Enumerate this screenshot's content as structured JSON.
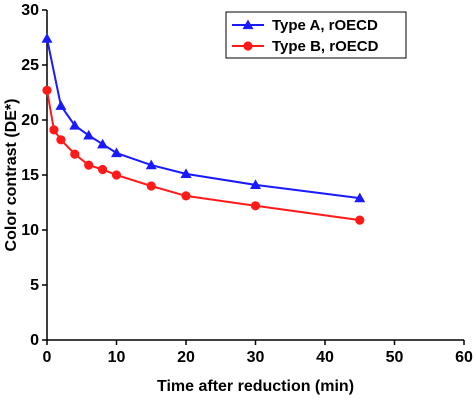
{
  "chart_data": {
    "type": "line",
    "title": "",
    "xlabel": "Time after reduction (min)",
    "ylabel": "Color contrast (DE*)",
    "xlim": [
      0,
      60
    ],
    "ylim": [
      0,
      30
    ],
    "xticks": [
      "0",
      "10",
      "20",
      "30",
      "40",
      "50",
      "60"
    ],
    "yticks": [
      "0",
      "5",
      "10",
      "15",
      "20",
      "25",
      "30"
    ],
    "grid": false,
    "legend_position": "top-right",
    "series": [
      {
        "name": "Type A, rOECD",
        "color": "#1a1aff",
        "marker": "triangle",
        "x": [
          0,
          2,
          4,
          6,
          8,
          10,
          15,
          20,
          30,
          45
        ],
        "y": [
          27.4,
          21.3,
          19.5,
          18.6,
          17.8,
          17.0,
          15.9,
          15.1,
          14.1,
          12.9
        ]
      },
      {
        "name": "Type B, rOECD",
        "color": "#ff1a1a",
        "marker": "circle",
        "x": [
          0,
          1,
          2,
          4,
          6,
          8,
          10,
          15,
          20,
          30,
          45
        ],
        "y": [
          22.7,
          19.1,
          18.2,
          16.9,
          15.9,
          15.5,
          15.0,
          14.0,
          13.1,
          12.2,
          10.9
        ]
      }
    ]
  }
}
